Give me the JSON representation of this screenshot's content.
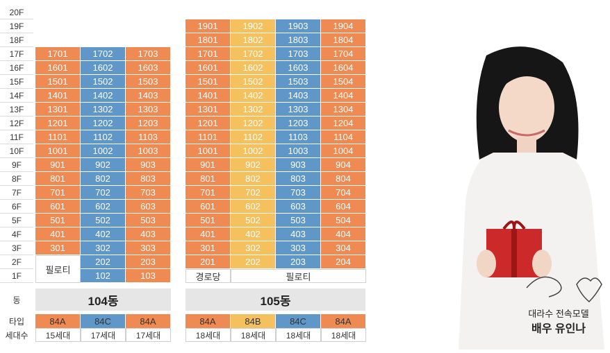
{
  "colors": {
    "orange": "#ee8a52",
    "blue": "#5f97c9",
    "yellow": "#f5c15f"
  },
  "floors": [
    "20F",
    "19F",
    "18F",
    "17F",
    "16F",
    "15F",
    "14F",
    "13F",
    "12F",
    "11F",
    "10F",
    "9F",
    "8F",
    "7F",
    "6F",
    "5F",
    "4F",
    "3F",
    "2F",
    "1F"
  ],
  "building104": {
    "name": "104동",
    "types": [
      {
        "label": "84A",
        "color": "orange"
      },
      {
        "label": "84C",
        "color": "blue"
      },
      {
        "label": "84A",
        "color": "orange"
      }
    ],
    "households": [
      "15세대",
      "17세대",
      "17세대"
    ],
    "piloti_label": "필로티"
  },
  "building105": {
    "name": "105동",
    "types": [
      {
        "label": "84A",
        "color": "orange"
      },
      {
        "label": "84B",
        "color": "yellow"
      },
      {
        "label": "84C",
        "color": "blue"
      },
      {
        "label": "84A",
        "color": "orange"
      }
    ],
    "households": [
      "18세대",
      "18세대",
      "18세대",
      "18세대"
    ],
    "gyeongrodang_label": "경로당",
    "piloti_label": "필로티"
  },
  "row_labels": {
    "dong": "동",
    "type": "타입",
    "households": "세대수"
  },
  "caption": {
    "line1": "대라수 전속모델",
    "line2": "배우 유인나"
  }
}
